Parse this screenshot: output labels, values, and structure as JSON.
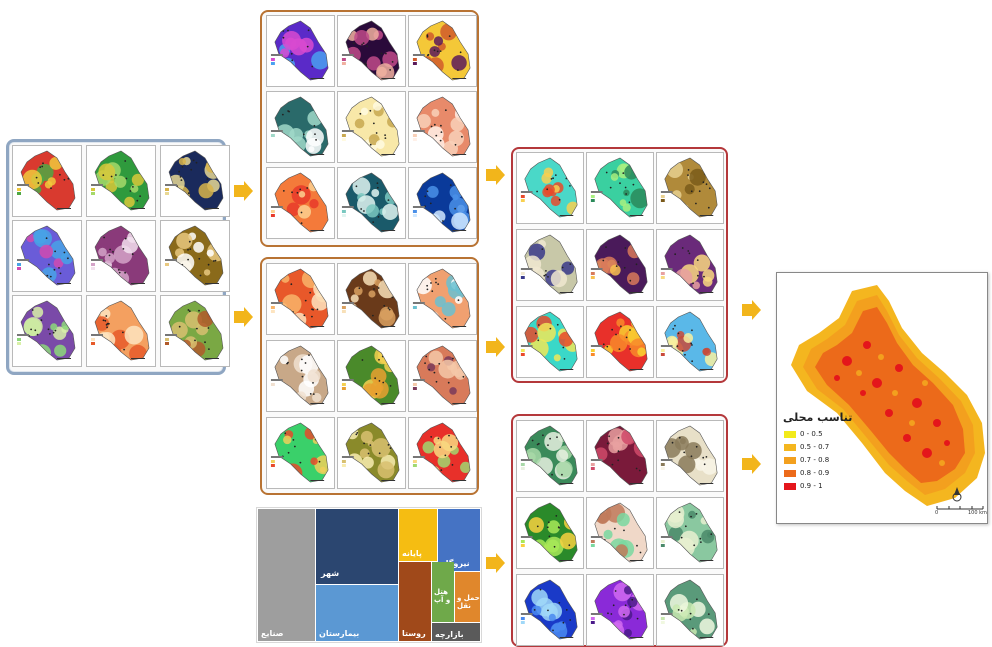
{
  "treemap": {
    "labels": [
      "صنایع",
      "شهر",
      "بیمارستان",
      "پایانه",
      "نیروگاه",
      "روستا",
      "هتل و آپ",
      "حمل و نقل",
      "بازارچه"
    ]
  },
  "final_map": {
    "legend_title": "تناسب محلی",
    "legend": [
      {
        "label": "0 - 0.5",
        "color": "#f2ea1a"
      },
      {
        "label": "0.5 - 0.7",
        "color": "#f4b61f"
      },
      {
        "label": "0.7 - 0.8",
        "color": "#f3a01e"
      },
      {
        "label": "0.8 - 0.9",
        "color": "#ec6a1a"
      },
      {
        "label": "0.9 - 1",
        "color": "#e4161b"
      }
    ],
    "scale": [
      "0",
      "100 km"
    ]
  },
  "colors": {
    "arrow": "#f2b51b",
    "panel_blue": "#8fa6c2",
    "panel_orange": "#b87333",
    "panel_red": "#b4383b"
  }
}
